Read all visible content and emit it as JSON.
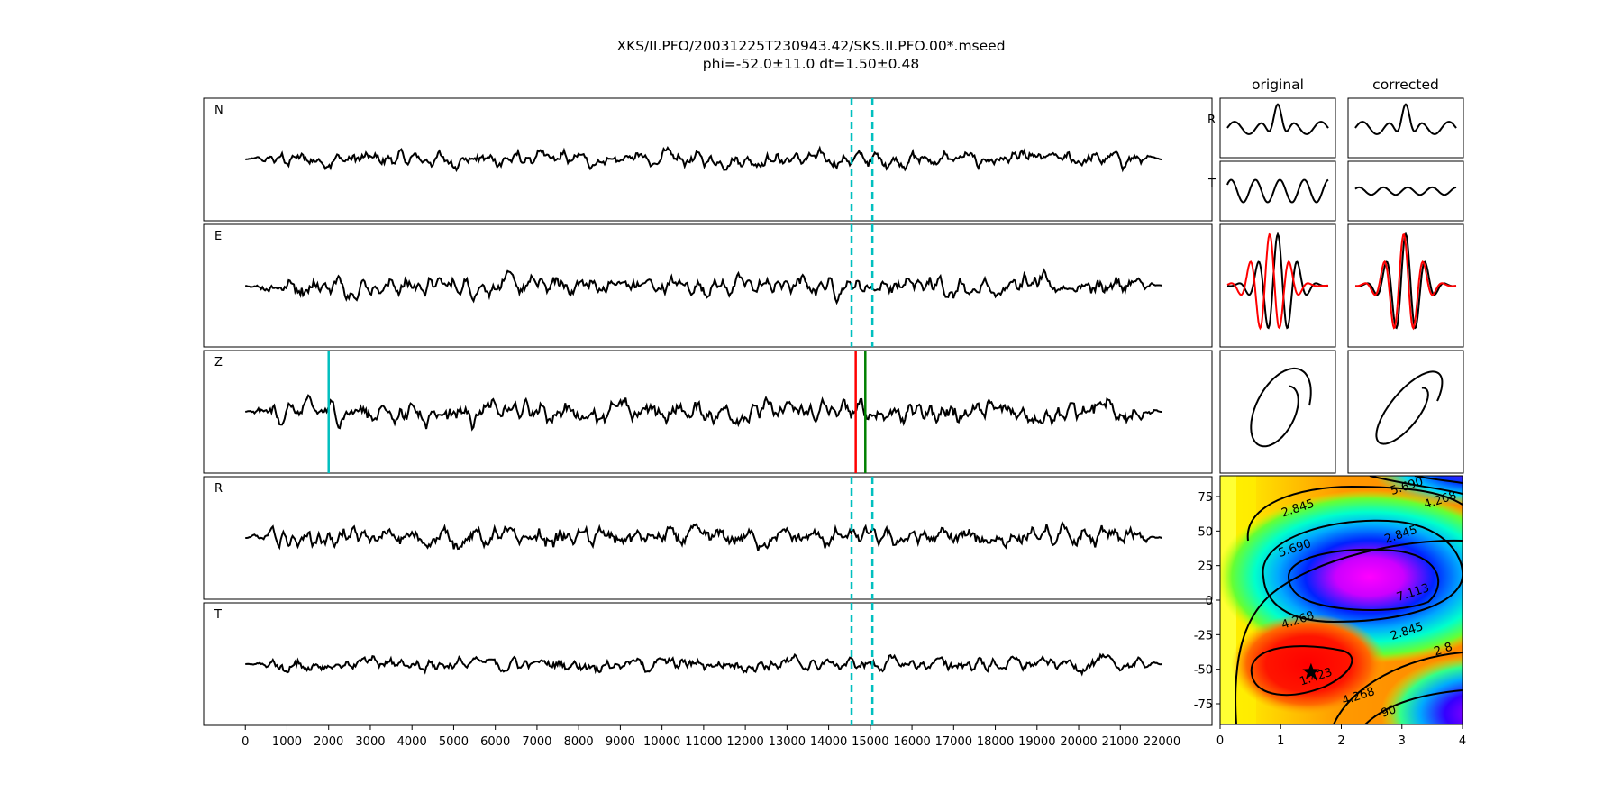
{
  "figure": {
    "title_line1": "XKS/II.PFO/20031225T230943.42/SKS.II.PFO.00*.mseed",
    "title_line2": "phi=-52.0±11.0 dt=1.50±0.48",
    "col_original": "original",
    "col_corrected": "corrected"
  },
  "colors": {
    "trace": "#000000",
    "window_marker": "#00bfbf",
    "pick_early": "#ff0000",
    "pick_late": "#008000",
    "first_pick": "#00bfbf",
    "overlay_shifted": "#ff0000",
    "star": "#000000"
  },
  "chart_data": [
    {
      "type": "line",
      "description": "Five stacked seismogram traces sharing one x axis",
      "traces": [
        "N",
        "E",
        "Z",
        "R",
        "T"
      ],
      "xlim": [
        -1000,
        23200
      ],
      "xticks": [
        0,
        1000,
        2000,
        3000,
        4000,
        5000,
        6000,
        7000,
        8000,
        9000,
        10000,
        11000,
        12000,
        13000,
        14000,
        15000,
        16000,
        17000,
        18000,
        19000,
        20000,
        21000,
        22000
      ],
      "trace_start": 0,
      "trace_end": 22000,
      "analysis_window": [
        14550,
        15050
      ],
      "picks": [
        {
          "x": 2000,
          "color": "cyan"
        },
        {
          "x": 14650,
          "color": "red"
        },
        {
          "x": 14880,
          "color": "green"
        }
      ]
    },
    {
      "type": "line",
      "description": "Windowed particle waveforms",
      "columns": [
        "original",
        "corrected"
      ],
      "rows": [
        "R",
        "T"
      ]
    },
    {
      "type": "heatmap",
      "description": "Splitting misfit surface (phi vs dt)",
      "xlim": [
        0,
        4
      ],
      "ylim": [
        -90,
        90
      ],
      "xticks": [
        0,
        1,
        2,
        3,
        4
      ],
      "yticks": [
        -75,
        -50,
        -25,
        0,
        25,
        50,
        75
      ],
      "contour_levels": [
        1.423,
        2.845,
        4.268,
        5.69,
        7.113
      ],
      "contour_labels": [
        {
          "text": "5.690",
          "x": 3.1,
          "y": 80
        },
        {
          "text": "4.268",
          "x": 3.65,
          "y": 70
        },
        {
          "text": "2.845",
          "x": 1.3,
          "y": 64
        },
        {
          "text": "2.845",
          "x": 3.0,
          "y": 45
        },
        {
          "text": "5.690",
          "x": 1.25,
          "y": 35
        },
        {
          "text": "7.113",
          "x": 3.2,
          "y": 3
        },
        {
          "text": "4.268",
          "x": 1.3,
          "y": -17
        },
        {
          "text": "2.845",
          "x": 3.1,
          "y": -25
        },
        {
          "text": "2.8",
          "x": 3.7,
          "y": -38
        },
        {
          "text": "1.423",
          "x": 1.6,
          "y": -58
        },
        {
          "text": "4.268",
          "x": 2.3,
          "y": -72
        },
        {
          "text": "90",
          "x": 2.8,
          "y": -83
        }
      ],
      "best_fit": {
        "dt": 1.5,
        "phi": -52.0
      }
    }
  ]
}
